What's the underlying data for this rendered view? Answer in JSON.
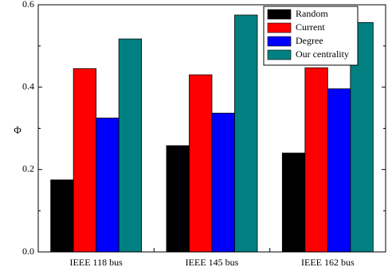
{
  "chart_data": {
    "type": "bar",
    "categories": [
      "IEEE 118 bus",
      "IEEE 145 bus",
      "IEEE 162 bus"
    ],
    "series": [
      {
        "name": "Random",
        "color": "#000000",
        "values": [
          0.175,
          0.258,
          0.24
        ]
      },
      {
        "name": "Current",
        "color": "#ff0000",
        "values": [
          0.445,
          0.43,
          0.447
        ]
      },
      {
        "name": "Degree",
        "color": "#0000ff",
        "values": [
          0.325,
          0.337,
          0.396
        ]
      },
      {
        "name": "Our centrality",
        "color": "#008080",
        "values": [
          0.517,
          0.575,
          0.557
        ]
      }
    ],
    "title": "",
    "xlabel": "",
    "ylabel": "Φ",
    "ylim": [
      0.0,
      0.6
    ],
    "yticks": [
      "0.0",
      "0.2",
      "0.4",
      "0.6"
    ],
    "grid": false,
    "legend_position": "top-right"
  }
}
